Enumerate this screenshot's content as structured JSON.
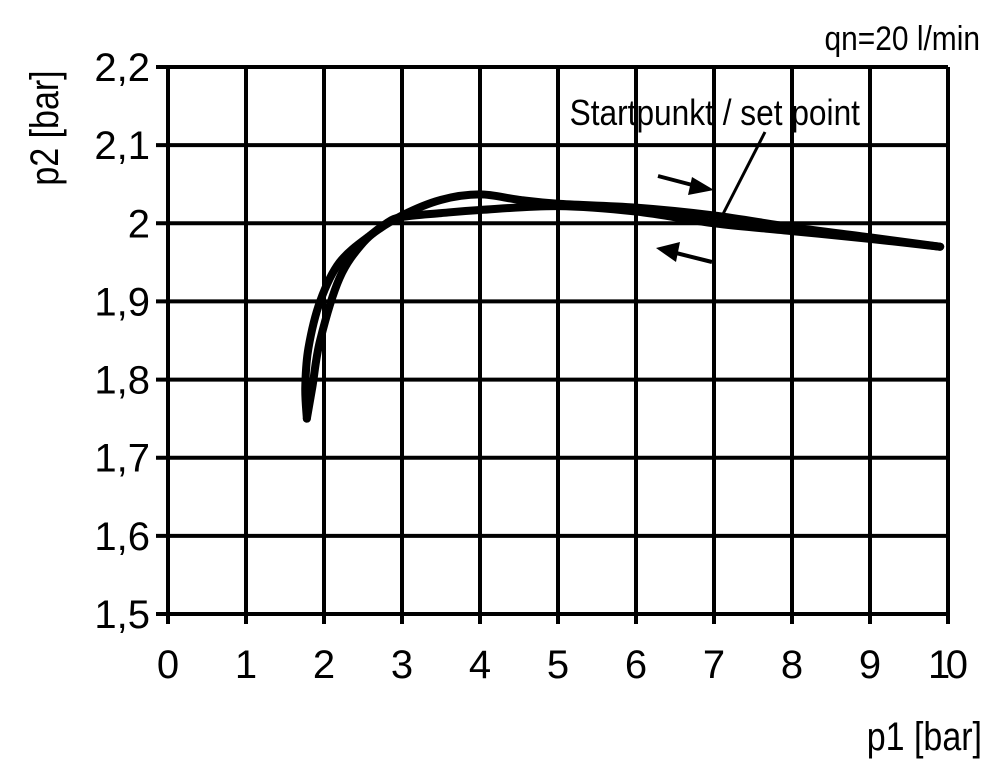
{
  "chart_data": {
    "type": "line",
    "annotation_top": "qn=20 l/min",
    "annotation_setpoint": "Startpunkt / set point",
    "xlabel": "p1 [bar]",
    "ylabel": "p2 [bar]",
    "xlim": [
      0,
      10
    ],
    "ylim": [
      1.5,
      2.2
    ],
    "grid": true,
    "x_ticks": [
      "0",
      "1",
      "2",
      "3",
      "4",
      "5",
      "6",
      "7",
      "8",
      "9",
      "10"
    ],
    "y_ticks": [
      "1,5",
      "1,6",
      "1,7",
      "1,8",
      "1,9",
      "2",
      "2,1",
      "2,2"
    ],
    "series": [
      {
        "direction": "increasing p1",
        "x": [
          1.78,
          1.85,
          1.95,
          2.2,
          2.5,
          2.8,
          3.0,
          3.5,
          4.0,
          5.0,
          6.0,
          7.0,
          8.0,
          9.0,
          9.9
        ],
        "y": [
          1.75,
          1.79,
          1.85,
          1.93,
          1.975,
          2.0,
          2.008,
          2.013,
          2.017,
          2.022,
          2.015,
          2.0,
          1.99,
          1.98,
          1.97
        ]
      },
      {
        "direction": "decreasing p1",
        "x": [
          9.9,
          9.0,
          8.0,
          7.0,
          6.0,
          5.0,
          4.5,
          4.0,
          3.5,
          3.0,
          2.6,
          2.2,
          1.95,
          1.8,
          1.76,
          1.78
        ],
        "y": [
          1.97,
          1.982,
          1.995,
          2.01,
          2.02,
          2.025,
          2.03,
          2.037,
          2.03,
          2.01,
          1.985,
          1.95,
          1.9,
          1.84,
          1.79,
          1.75
        ]
      }
    ],
    "arrows": [
      "right",
      "left"
    ]
  }
}
